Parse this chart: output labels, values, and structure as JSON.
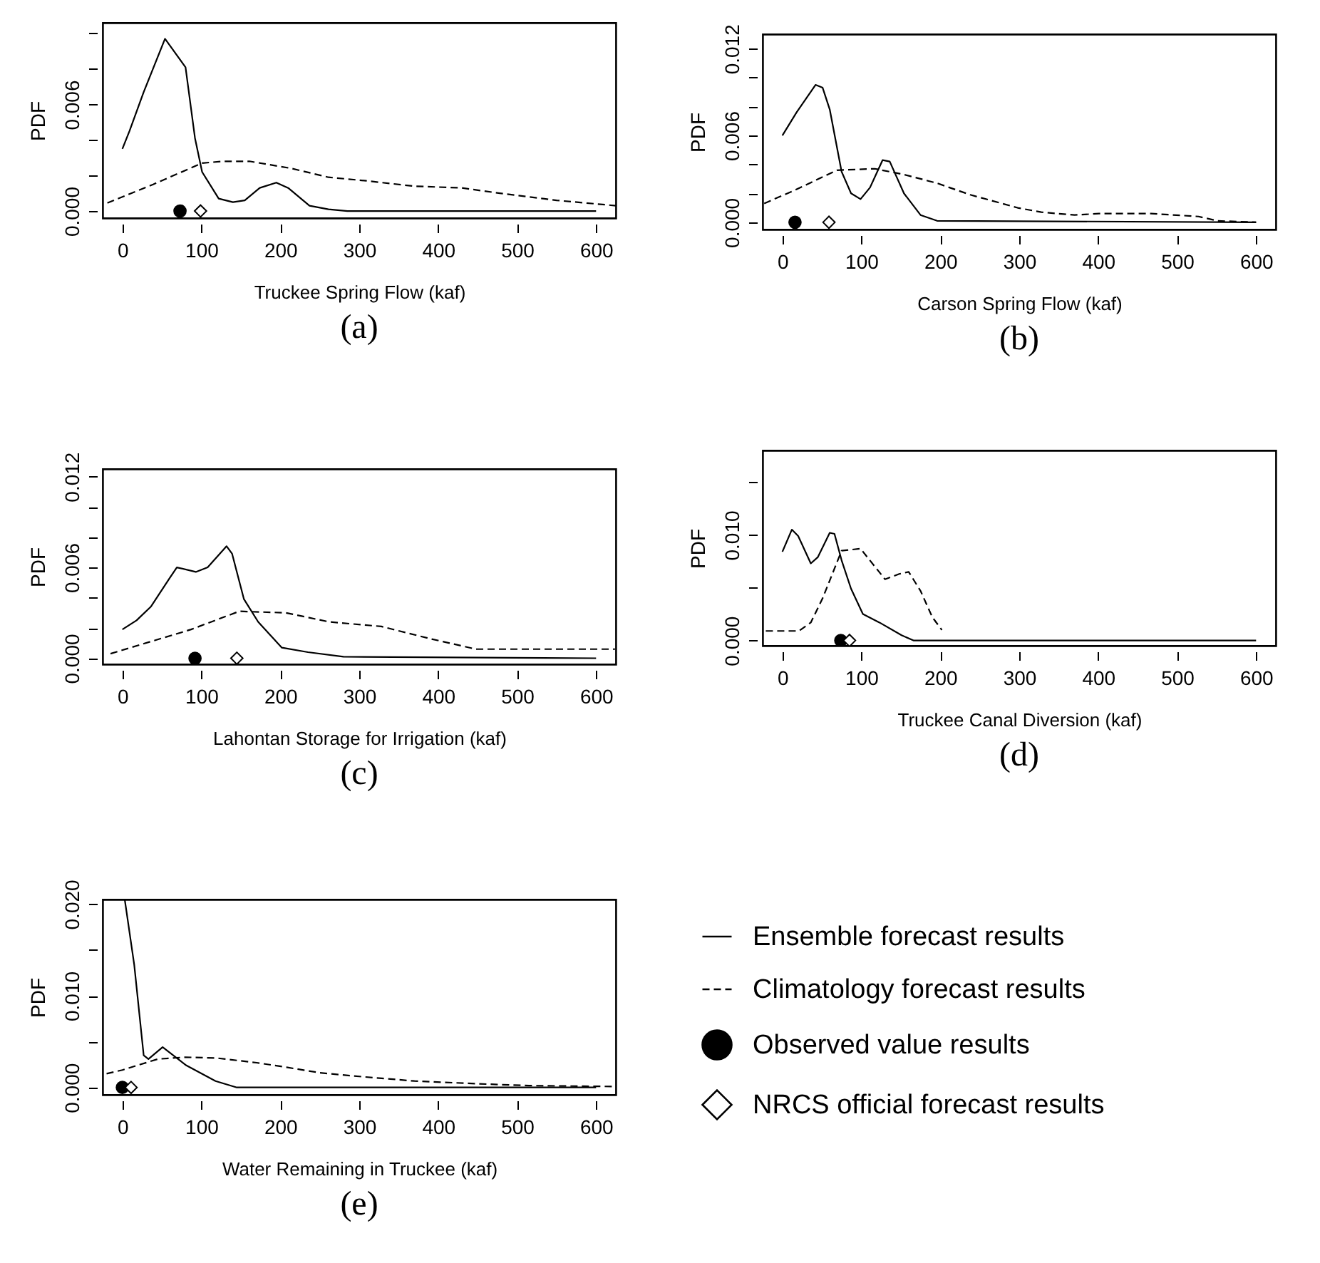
{
  "chart_data": [
    {
      "type": "line",
      "title": "(a)",
      "xlabel": "Truckee Spring Flow (kaf)",
      "ylabel": "PDF",
      "xlim": [
        -25,
        625
      ],
      "xticks": [
        0,
        100,
        200,
        300,
        400,
        500,
        600
      ],
      "ylim": [
        -0.0004,
        0.0106
      ],
      "yticks": [
        {
          "value": 0,
          "label": "0.000"
        },
        {
          "value": 0.002,
          "label": null
        },
        {
          "value": 0.004,
          "label": null
        },
        {
          "value": 0.006,
          "label": "0.006"
        },
        {
          "value": 0.008,
          "label": null
        },
        {
          "value": 0.01,
          "label": null
        }
      ],
      "series": [
        {
          "type": "line",
          "line_style": "solid",
          "color": "#000000",
          "x": [
            0,
            9,
            27,
            54,
            80,
            92,
            101,
            122,
            140,
            155,
            174,
            195,
            210,
            237,
            261,
            285,
            600
          ],
          "values": [
            0.0035,
            0.0045,
            0.0067,
            0.0097,
            0.0081,
            0.0041,
            0.0022,
            0.0007,
            0.0005,
            0.0006,
            0.0013,
            0.0016,
            0.0013,
            0.0003,
            0.0001,
            0,
            0
          ]
        },
        {
          "type": "line",
          "line_style": "dashed",
          "color": "#000000",
          "x": [
            -19,
            39,
            101,
            128,
            161,
            214,
            261,
            309,
            369,
            430,
            478,
            550,
            625
          ],
          "values": [
            0.00045,
            0.0015,
            0.0027,
            0.0028,
            0.0028,
            0.0024,
            0.0019,
            0.0017,
            0.0014,
            0.0013,
            0.001,
            0.0006,
            0.0003
          ]
        },
        {
          "type": "scatter",
          "marker": "circle",
          "color": "#000000",
          "x": [
            73
          ],
          "values": [
            0
          ]
        },
        {
          "type": "scatter",
          "marker": "diamond",
          "color": "#000000",
          "x": [
            99
          ],
          "values": [
            0
          ]
        }
      ]
    },
    {
      "type": "line",
      "title": "(b)",
      "xlabel": "Carson Spring Flow (kaf)",
      "ylabel": "PDF",
      "xlim": [
        -25,
        625
      ],
      "xticks": [
        0,
        100,
        200,
        300,
        400,
        500,
        600
      ],
      "ylim": [
        -0.0005,
        0.013
      ],
      "yticks": [
        {
          "value": 0,
          "label": "0.000"
        },
        {
          "value": 0.002,
          "label": null
        },
        {
          "value": 0.004,
          "label": null
        },
        {
          "value": 0.006,
          "label": "0.006"
        },
        {
          "value": 0.008,
          "label": null
        },
        {
          "value": 0.01,
          "label": null
        },
        {
          "value": 0.012,
          "label": "0.012"
        }
      ],
      "series": [
        {
          "type": "line",
          "line_style": "solid",
          "color": "#000000",
          "x": [
            0,
            18,
            42,
            51,
            60,
            75,
            87,
            99,
            111,
            127,
            136,
            154,
            175,
            196,
            600
          ],
          "values": [
            0.006,
            0.0076,
            0.0095,
            0.0093,
            0.0078,
            0.0035,
            0.002,
            0.0016,
            0.0024,
            0.0043,
            0.0042,
            0.002,
            0.0005,
            0.0001,
            0
          ]
        },
        {
          "type": "line",
          "line_style": "dashed",
          "color": "#000000",
          "x": [
            -23,
            15,
            69,
            117,
            154,
            196,
            238,
            298,
            328,
            370,
            401,
            467,
            527,
            551,
            600
          ],
          "values": [
            0.0013,
            0.0022,
            0.0036,
            0.0037,
            0.0033,
            0.0027,
            0.0019,
            0.001,
            0.0007,
            0.0005,
            0.0006,
            0.0006,
            0.0004,
            0.0001,
            0
          ]
        },
        {
          "type": "scatter",
          "marker": "circle",
          "color": "#000000",
          "x": [
            16
          ],
          "values": [
            0
          ]
        },
        {
          "type": "scatter",
          "marker": "diamond",
          "color": "#000000",
          "x": [
            59
          ],
          "values": [
            0
          ]
        }
      ]
    },
    {
      "type": "line",
      "title": "(c)",
      "xlabel": "Lahontan Storage for Irrigation (kaf)",
      "ylabel": "PDF",
      "xlim": [
        -25,
        625
      ],
      "xticks": [
        0,
        100,
        200,
        300,
        400,
        500,
        600
      ],
      "ylim": [
        -0.0004,
        0.0125
      ],
      "yticks": [
        {
          "value": 0,
          "label": "0.000"
        },
        {
          "value": 0.002,
          "label": null
        },
        {
          "value": 0.004,
          "label": null
        },
        {
          "value": 0.006,
          "label": "0.006"
        },
        {
          "value": 0.008,
          "label": null
        },
        {
          "value": 0.01,
          "label": null
        },
        {
          "value": 0.012,
          "label": "0.012"
        }
      ],
      "series": [
        {
          "type": "line",
          "line_style": "solid",
          "color": "#000000",
          "x": [
            0,
            18,
            36,
            60,
            69,
            93,
            108,
            132,
            139,
            154,
            172,
            202,
            235,
            280,
            600
          ],
          "values": [
            0.0019,
            0.0025,
            0.0034,
            0.0053,
            0.006,
            0.0057,
            0.006,
            0.0074,
            0.0069,
            0.0039,
            0.0024,
            0.0007,
            0.0004,
            0.0001,
            0
          ]
        },
        {
          "type": "line",
          "line_style": "dashed",
          "color": "#000000",
          "x": [
            -15,
            87,
            148,
            207,
            262,
            328,
            389,
            448,
            624
          ],
          "values": [
            0.0003,
            0.0019,
            0.0031,
            0.003,
            0.0024,
            0.0021,
            0.0013,
            0.0006,
            0.0006
          ]
        },
        {
          "type": "scatter",
          "marker": "circle",
          "color": "#000000",
          "x": [
            92
          ],
          "values": [
            0
          ]
        },
        {
          "type": "scatter",
          "marker": "diamond",
          "color": "#000000",
          "x": [
            145
          ],
          "values": [
            0
          ]
        }
      ]
    },
    {
      "type": "line",
      "title": "(d)",
      "xlabel": "Truckee Canal Diversion (kaf)",
      "ylabel": "PDF",
      "xlim": [
        -25,
        625
      ],
      "xticks": [
        0,
        100,
        200,
        300,
        400,
        500,
        600
      ],
      "ylim": [
        -0.0005,
        0.018
      ],
      "yticks": [
        {
          "value": 0,
          "label": "0.000"
        },
        {
          "value": 0.005,
          "label": null
        },
        {
          "value": 0.01,
          "label": "0.010"
        },
        {
          "value": 0.015,
          "label": null
        }
      ],
      "series": [
        {
          "type": "line",
          "line_style": "solid",
          "color": "#000000",
          "x": [
            0,
            12,
            20,
            36,
            45,
            60,
            66,
            75,
            87,
            102,
            123,
            151,
            166,
            600
          ],
          "values": [
            0.0084,
            0.0105,
            0.0099,
            0.0073,
            0.0079,
            0.0102,
            0.0101,
            0.0076,
            0.0049,
            0.0025,
            0.0017,
            0.0005,
            0,
            0
          ]
        },
        {
          "type": "line",
          "line_style": "dashed",
          "color": "#000000",
          "x": [
            -21,
            21,
            36,
            51,
            75,
            99,
            130,
            148,
            160,
            175,
            190,
            202
          ],
          "values": [
            0.0009,
            0.0009,
            0.0017,
            0.004,
            0.0085,
            0.0087,
            0.0058,
            0.0063,
            0.0065,
            0.0047,
            0.0022,
            0.001
          ]
        },
        {
          "type": "scatter",
          "marker": "circle",
          "color": "#000000",
          "x": [
            74
          ],
          "values": [
            0
          ]
        },
        {
          "type": "scatter",
          "marker": "diamond",
          "color": "#000000",
          "x": [
            85
          ],
          "values": [
            0
          ]
        }
      ]
    },
    {
      "type": "line",
      "title": "(e)",
      "xlabel": "Water Remaining in Truckee (kaf)",
      "ylabel": "PDF",
      "xlim": [
        -25,
        625
      ],
      "xticks": [
        0,
        100,
        200,
        300,
        400,
        500,
        600
      ],
      "ylim": [
        -0.0008,
        0.0205
      ],
      "yticks": [
        {
          "value": 0,
          "label": "0.000"
        },
        {
          "value": 0.005,
          "label": null
        },
        {
          "value": 0.01,
          "label": "0.010"
        },
        {
          "value": 0.015,
          "label": null
        },
        {
          "value": 0.02,
          "label": "0.020"
        }
      ],
      "legend": "right",
      "series": [
        {
          "type": "line",
          "name": "Ensemble forecast results",
          "line_style": "solid",
          "color": "#000000",
          "x": [
            3,
            15,
            27,
            33,
            51,
            81,
            118,
            145,
            600
          ],
          "values": [
            0.0205,
            0.0134,
            0.0035,
            0.0031,
            0.0044,
            0.0024,
            0.0007,
            0,
            0
          ]
        },
        {
          "type": "line",
          "name": "Climatology forecast results",
          "line_style": "dashed",
          "color": "#000000",
          "x": [
            -20,
            0,
            45,
            80,
            120,
            170,
            208,
            250,
            300,
            370,
            450,
            515,
            625
          ],
          "values": [
            0.0015,
            0.0019,
            0.0031,
            0.0033,
            0.0032,
            0.0027,
            0.0022,
            0.0016,
            0.0012,
            0.0007,
            0.0004,
            0.0002,
            0.0001
          ]
        },
        {
          "type": "scatter",
          "name": "Observed value results",
          "marker": "circle",
          "color": "#000000",
          "x": [
            0
          ],
          "values": [
            0
          ]
        },
        {
          "type": "scatter",
          "name": "NRCS official forecast results",
          "marker": "diamond",
          "color": "#000000",
          "x": [
            11
          ],
          "values": [
            0
          ]
        }
      ]
    }
  ]
}
